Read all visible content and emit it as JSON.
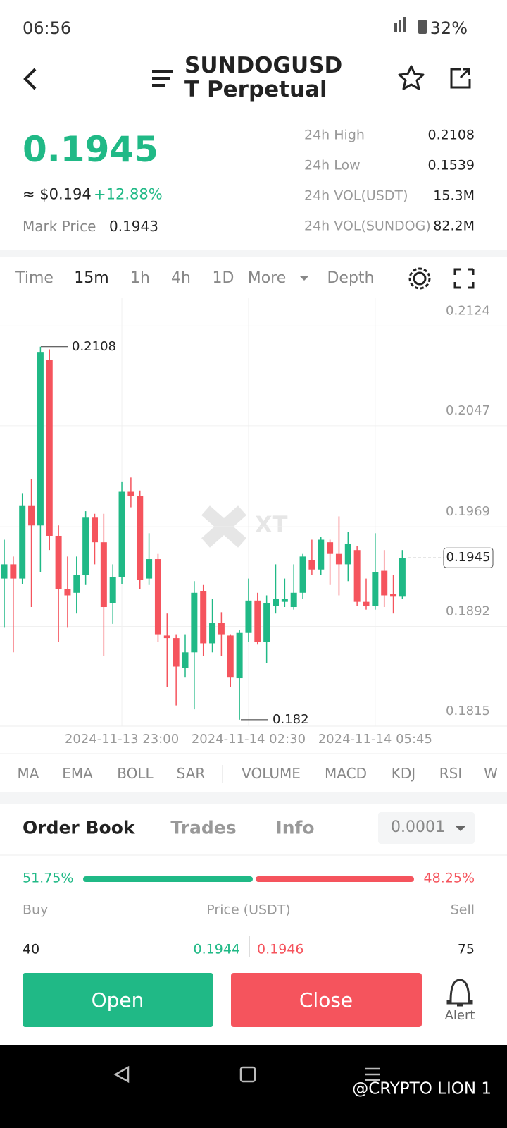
{
  "status_bar": {
    "time": "06:56",
    "battery": "32%"
  },
  "header": {
    "title": "SUNDOGUSDT Perpetual"
  },
  "ticker": {
    "price": "0.1945",
    "usd_price": "≈ $0.194",
    "change": "+12.88%",
    "mark_price_label": "Mark Price",
    "mark_price": "0.1943",
    "stats": [
      {
        "label": "24h High",
        "value": "0.2108"
      },
      {
        "label": "24h Low",
        "value": "0.1539"
      },
      {
        "label": "24h VOL(USDT)",
        "value": "15.3M"
      },
      {
        "label": "24h VOL(SUNDOG)",
        "value": "82.2M"
      }
    ]
  },
  "tabs": [
    "Time",
    "15m",
    "1h",
    "4h",
    "1D",
    "More",
    "Depth"
  ],
  "chart_data": {
    "type": "candlestick",
    "watermark": "XT",
    "up_color": "#20b986",
    "down_color": "#f5545d",
    "categories": [
      null,
      null,
      null,
      null,
      null,
      null,
      null,
      null,
      null,
      null,
      null,
      null,
      null,
      "2024-11-13 23:00",
      null,
      null,
      null,
      null,
      null,
      null,
      null,
      null,
      null,
      null,
      null,
      null,
      null,
      "2024-11-14 02:30",
      null,
      null,
      null,
      null,
      null,
      null,
      null,
      null,
      null,
      null,
      null,
      null,
      null,
      "2024-11-14 05:45",
      null,
      null,
      null
    ],
    "open": [
      0.1929,
      0.194,
      0.1929,
      0.1985,
      0.197,
      0.2098,
      0.1962,
      0.1921,
      0.1918,
      0.1932,
      0.1976,
      0.1957,
      0.191,
      0.193,
      0.1996,
      0.1993,
      0.1929,
      0.1944,
      0.1885,
      0.1883,
      0.186,
      0.1872,
      0.1919,
      0.1879,
      0.1895,
      0.1885,
      0.1852,
      0.1887,
      0.1912,
      0.188,
      0.1908,
      0.1911,
      0.1907,
      0.1918,
      0.1943,
      0.1936,
      0.1957,
      0.1948,
      0.194,
      0.1951,
      0.1911,
      0.1908,
      0.1935,
      0.1917,
      0.1915
    ],
    "high": [
      0.1959,
      0.1946,
      0.1995,
      0.2006,
      0.2108,
      0.2106,
      0.197,
      0.1946,
      0.1946,
      0.1981,
      0.1979,
      0.1979,
      0.194,
      0.2004,
      0.2007,
      0.1997,
      0.1964,
      0.1948,
      0.1902,
      0.1886,
      0.1886,
      0.1927,
      0.1924,
      0.1913,
      0.1903,
      0.1886,
      0.1889,
      0.1929,
      0.1918,
      0.1916,
      0.194,
      0.1929,
      0.194,
      0.1948,
      0.1959,
      0.1961,
      0.1959,
      0.1977,
      0.1965,
      0.1954,
      0.1929,
      0.1964,
      0.1951,
      0.1932,
      0.1951
    ],
    "low": [
      0.1891,
      0.1872,
      0.1925,
      0.1907,
      0.1934,
      0.1951,
      0.188,
      0.1891,
      0.1902,
      0.1924,
      0.194,
      0.1869,
      0.1894,
      0.1925,
      0.1984,
      0.1921,
      0.1924,
      0.188,
      0.1845,
      0.1831,
      0.1853,
      0.1828,
      0.1869,
      0.1872,
      0.1869,
      0.1845,
      0.182,
      0.188,
      0.1878,
      0.1864,
      0.1902,
      0.1907,
      0.1905,
      0.1913,
      0.1932,
      0.1932,
      0.1924,
      0.1916,
      0.1927,
      0.1908,
      0.1905,
      0.1905,
      0.1907,
      0.1902,
      0.1913
    ],
    "close": [
      0.194,
      0.1929,
      0.1985,
      0.197,
      0.2104,
      0.1962,
      0.1921,
      0.1916,
      0.1932,
      0.1976,
      0.1957,
      0.1907,
      0.193,
      0.1996,
      0.1993,
      0.1928,
      0.1944,
      0.1886,
      0.1883,
      0.1861,
      0.1872,
      0.1918,
      0.1879,
      0.1895,
      0.1886,
      0.1853,
      0.1887,
      0.1912,
      0.188,
      0.191,
      0.1913,
      0.1913,
      0.1918,
      0.1946,
      0.1936,
      0.1959,
      0.1948,
      0.194,
      0.1956,
      0.1911,
      0.1908,
      0.1934,
      0.1916,
      0.1915,
      0.1945
    ],
    "ylim": [
      0.1815,
      0.2146
    ],
    "yticks": [
      0.2124,
      0.2047,
      0.1969,
      0.1892,
      0.1815
    ],
    "grid": true,
    "high_marker": 0.2108,
    "low_marker": 0.182,
    "last_price": 0.1945
  },
  "indicators": [
    "MA",
    "EMA",
    "BOLL",
    "SAR",
    "VOLUME",
    "MACD",
    "KDJ",
    "RSI",
    "W"
  ],
  "order_book": {
    "tabs": [
      "Order Book",
      "Trades",
      "Info"
    ],
    "precision": "0.0001",
    "buy_ratio": "51.75%",
    "sell_ratio": "48.25%",
    "columns": [
      "Buy",
      "Price (USDT)",
      "Sell"
    ],
    "row": [
      "40",
      "0.1944",
      "0.1946",
      "75"
    ]
  },
  "buttons": {
    "open": "Open",
    "close": "Close",
    "alert": "Alert"
  },
  "watermark": "@CRYPTO LION 1"
}
